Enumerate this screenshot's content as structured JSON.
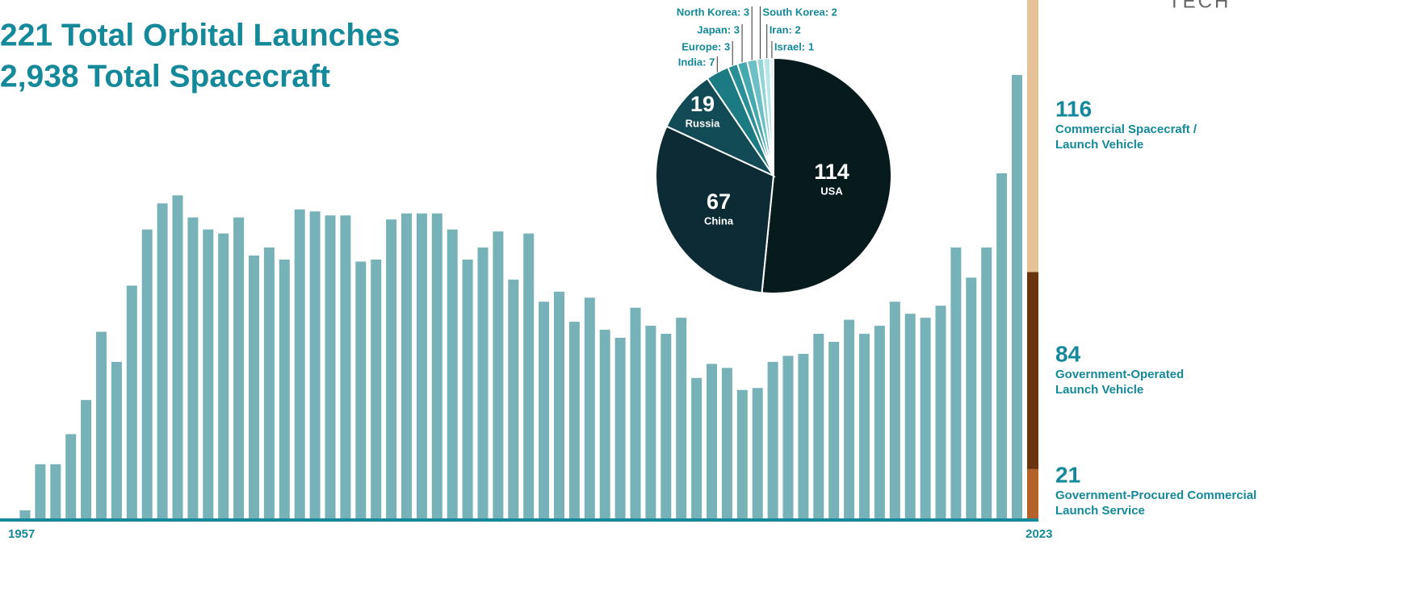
{
  "header": {
    "lines": [
      "221 Total Orbital Launches",
      "2,938 Total Spacecraft"
    ],
    "logo": "TECH"
  },
  "chart_data": [
    {
      "type": "bar",
      "categories": [
        "1957",
        null,
        null,
        null,
        null,
        null,
        null,
        null,
        null,
        null,
        null,
        null,
        null,
        null,
        null,
        null,
        null,
        null,
        null,
        null,
        null,
        null,
        null,
        null,
        null,
        null,
        null,
        null,
        null,
        null,
        null,
        null,
        null,
        null,
        null,
        null,
        null,
        null,
        null,
        null,
        null,
        null,
        null,
        null,
        null,
        null,
        null,
        null,
        null,
        null,
        null,
        null,
        null,
        null,
        null,
        null,
        null,
        null,
        null,
        null,
        null,
        null,
        null,
        null,
        null,
        "2023"
      ],
      "values": [
        4,
        27,
        27,
        42,
        59,
        93,
        78,
        116,
        144,
        157,
        161,
        150,
        144,
        142,
        150,
        131,
        135,
        129,
        154,
        153,
        151,
        151,
        128,
        129,
        149,
        152,
        152,
        152,
        144,
        129,
        135,
        143,
        119,
        142,
        108,
        113,
        98,
        110,
        94,
        90,
        105,
        96,
        92,
        100,
        70,
        77,
        75,
        64,
        65,
        78,
        81,
        82,
        92,
        88,
        99,
        92,
        96,
        108,
        102,
        100,
        106,
        135,
        120,
        135,
        172,
        221
      ],
      "color": "#76b2b7"
    },
    {
      "type": "pie",
      "categories": [
        "USA",
        "China",
        "Russia",
        "India",
        "Europe",
        "Japan",
        "North Korea",
        "South Korea",
        "Iran",
        "Israel"
      ],
      "values": [
        114,
        67,
        19,
        7,
        3,
        3,
        3,
        2,
        2,
        1
      ],
      "value_labels": [
        "114",
        "67",
        "19",
        "India: 7",
        "Europe: 3",
        "Japan: 3",
        "North Korea: 3",
        "South Korea: 2",
        "Iran: 2",
        "Israel: 1"
      ],
      "colors": [
        "#071a1c",
        "#0c2b35",
        "#124a55",
        "#1b7a82",
        "#2a8f96",
        "#45a9b0",
        "#6cc0c6",
        "#92d4d8",
        "#b8e6e8",
        "#daf4f5"
      ]
    },
    {
      "type": "stacked_bar",
      "series": [
        {
          "name": [
            "Government-Procured Commercial",
            "Launch Service"
          ],
          "color": "#b5622a",
          "values": [
            21
          ]
        },
        {
          "name": [
            "Government-Operated",
            "Launch Vehicle"
          ],
          "color": "#6b3410",
          "values": [
            84
          ]
        },
        {
          "name": [
            "Commercial Spacecraft /",
            "Launch Vehicle"
          ],
          "color": "#e5c298",
          "values": [
            116
          ]
        }
      ]
    }
  ]
}
